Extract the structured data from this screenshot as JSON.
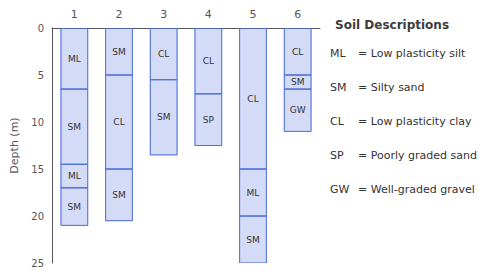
{
  "chart_data": {
    "type": "bar",
    "title": "Soil Descriptions",
    "ylabel": "Depth (m)",
    "categories": [
      "1",
      "2",
      "3",
      "4",
      "5",
      "6"
    ],
    "layers": [
      [
        {
          "top": 0,
          "bottom": 6.5,
          "label": "ML"
        },
        {
          "top": 6.5,
          "bottom": 14.5,
          "label": "SM"
        },
        {
          "top": 14.5,
          "bottom": 17.0,
          "label": "ML"
        },
        {
          "top": 17.0,
          "bottom": 21.0,
          "label": "SM"
        }
      ],
      [
        {
          "top": 0,
          "bottom": 5.0,
          "label": "SM"
        },
        {
          "top": 5.0,
          "bottom": 15.0,
          "label": "CL"
        },
        {
          "top": 15.0,
          "bottom": 20.5,
          "label": "SM"
        }
      ],
      [
        {
          "top": 0,
          "bottom": 5.5,
          "label": "CL"
        },
        {
          "top": 5.5,
          "bottom": 13.5,
          "label": "SM"
        }
      ],
      [
        {
          "top": 0,
          "bottom": 7.0,
          "label": "CL"
        },
        {
          "top": 7.0,
          "bottom": 12.5,
          "label": "SP"
        }
      ],
      [
        {
          "top": 0,
          "bottom": 15.0,
          "label": "CL"
        },
        {
          "top": 15.0,
          "bottom": 20.0,
          "label": "ML"
        },
        {
          "top": 20.0,
          "bottom": 25.0,
          "label": "SM"
        }
      ],
      [
        {
          "top": 0,
          "bottom": 5.0,
          "label": "CL"
        },
        {
          "top": 5.0,
          "bottom": 6.5,
          "label": "SM"
        },
        {
          "top": 6.5,
          "bottom": 11.0,
          "label": "GW"
        }
      ]
    ],
    "ylim": [
      0,
      25
    ],
    "yticks": [
      0,
      5,
      10,
      15,
      20,
      25
    ],
    "grid": false,
    "annotations": [
      {
        "code": "ML",
        "text": "= Low plasticity silt"
      },
      {
        "code": "SM",
        "text": "= Silty sand"
      },
      {
        "code": "CL",
        "text": "= Low plasticity clay"
      },
      {
        "code": "SP",
        "text": "= Poorly graded sand"
      },
      {
        "code": "GW",
        "text": "= Well-graded gravel"
      }
    ]
  }
}
